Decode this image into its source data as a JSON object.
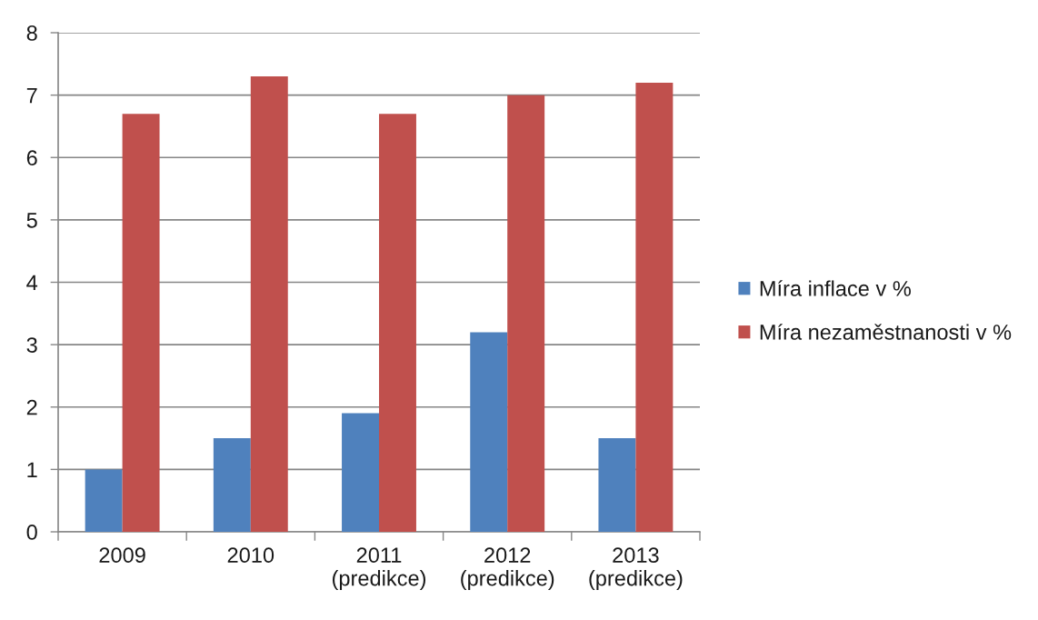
{
  "chart_data": {
    "type": "bar",
    "categories": [
      "2009",
      "2010",
      "2011\n(predikce)",
      "2012\n(predikce)",
      "2013\n(predikce)"
    ],
    "series": [
      {
        "name": "Míra inflace v %",
        "color": "#4f81bd",
        "values": [
          1.0,
          1.5,
          1.9,
          3.2,
          1.5
        ]
      },
      {
        "name": "Míra nezaměstnanosti v %",
        "color": "#c0504d",
        "values": [
          6.7,
          7.3,
          6.7,
          7.0,
          7.2
        ]
      }
    ],
    "ylim": [
      0,
      8
    ],
    "yticks": [
      0,
      1,
      2,
      3,
      4,
      5,
      6,
      7,
      8
    ],
    "grid": "y",
    "legend": "right"
  }
}
